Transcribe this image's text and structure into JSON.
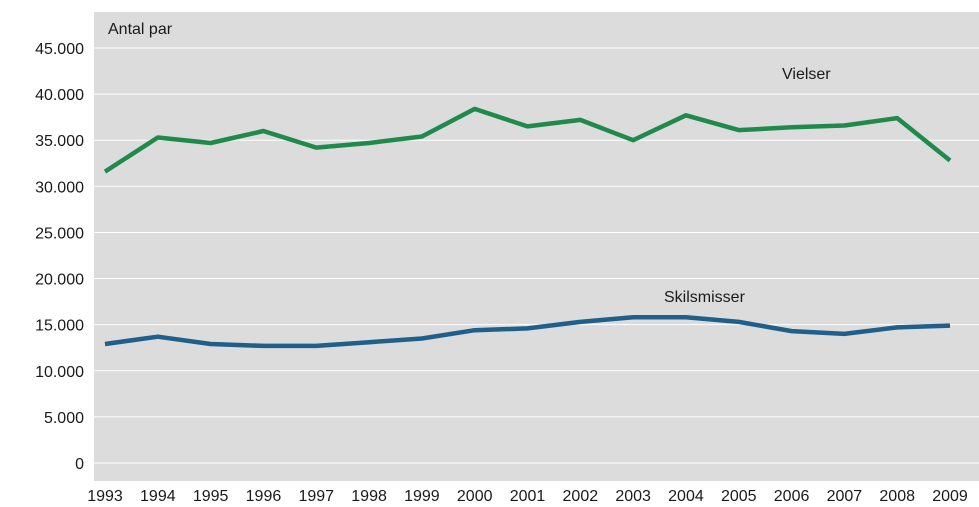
{
  "chart_data": {
    "type": "line",
    "ylabel": "Antal par",
    "ylim": [
      0,
      45000
    ],
    "yticks": [
      0,
      5000,
      10000,
      15000,
      20000,
      25000,
      30000,
      35000,
      40000,
      45000
    ],
    "ytick_labels": [
      "0",
      "5.000",
      "10.000",
      "15.000",
      "20.000",
      "25.000",
      "30.000",
      "35.000",
      "40.000",
      "45.000"
    ],
    "x": [
      "1993",
      "1994",
      "1995",
      "1996",
      "1997",
      "1998",
      "1999",
      "2000",
      "2001",
      "2002",
      "2003",
      "2004",
      "2005",
      "2006",
      "2007",
      "2008",
      "2009"
    ],
    "grid": true,
    "background_color": "#dcdcdc",
    "grid_color": "#ffffff",
    "series": [
      {
        "name": "Vielser",
        "color": "#1f8a4c",
        "values": [
          31600,
          35300,
          34700,
          36000,
          34200,
          34700,
          35400,
          38400,
          36500,
          37200,
          35000,
          37700,
          36100,
          36400,
          36600,
          37400,
          32800
        ]
      },
      {
        "name": "Skilsmisser",
        "color": "#1f5f8b",
        "values": [
          12900,
          13700,
          12900,
          12700,
          12700,
          13100,
          13500,
          14400,
          14600,
          15300,
          15800,
          15800,
          15300,
          14300,
          14000,
          14700,
          14900
        ]
      }
    ]
  }
}
